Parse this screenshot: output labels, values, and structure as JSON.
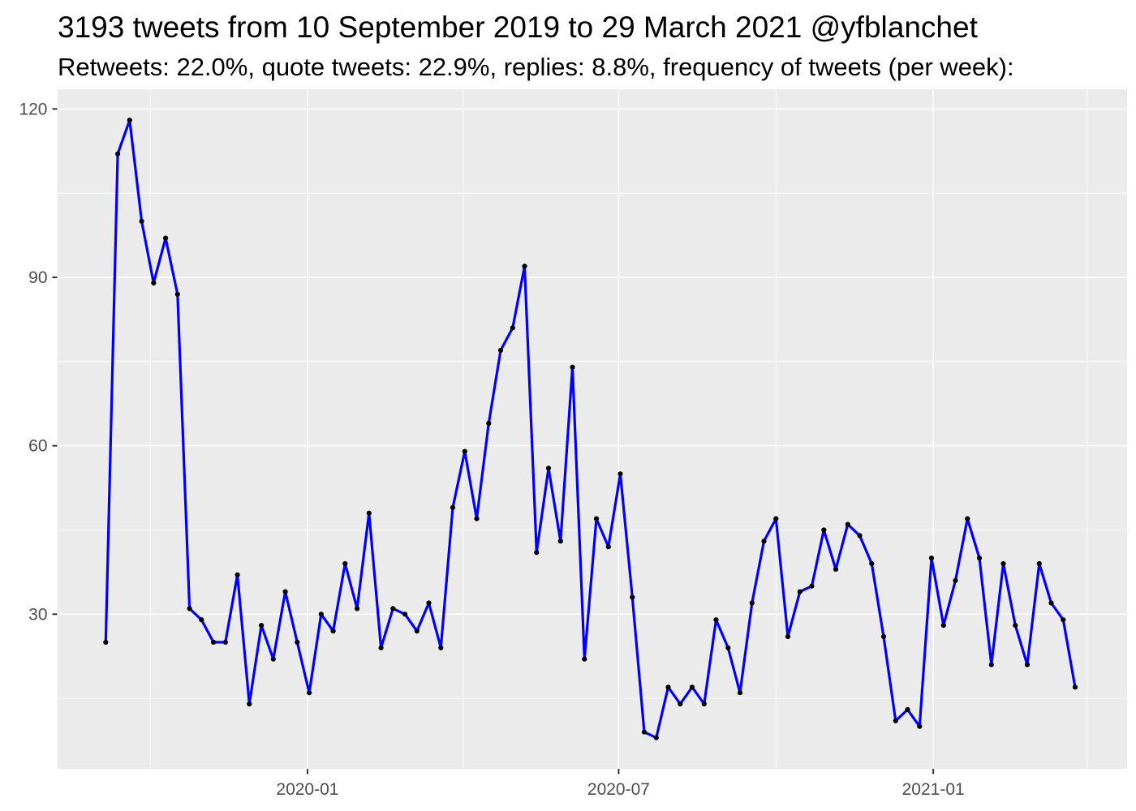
{
  "header": {
    "title": "3193 tweets from 10 September 2019 to 29 March 2021 @yfblanchet",
    "subtitle": "Retweets: 22.0%, quote tweets: 22.9%, replies: 8.8%, frequency of tweets (per week):"
  },
  "chart_data": {
    "type": "line",
    "title": "3193 tweets from 10 September 2019 to 29 March 2021 @yfblanchet",
    "subtitle": "Retweets: 22.0%, quote tweets: 22.9%, replies: 8.8%, frequency of tweets (per week):",
    "series_name": "tweets-per-week",
    "xlabel": "",
    "ylabel": "",
    "legend": "none",
    "grid": true,
    "x": [
      "2019-09-05",
      "2019-09-12",
      "2019-09-19",
      "2019-09-26",
      "2019-10-03",
      "2019-10-10",
      "2019-10-17",
      "2019-10-24",
      "2019-10-31",
      "2019-11-07",
      "2019-11-14",
      "2019-11-21",
      "2019-11-28",
      "2019-12-05",
      "2019-12-12",
      "2019-12-19",
      "2019-12-26",
      "2020-01-02",
      "2020-01-09",
      "2020-01-16",
      "2020-01-23",
      "2020-01-30",
      "2020-02-06",
      "2020-02-13",
      "2020-02-20",
      "2020-02-27",
      "2020-03-05",
      "2020-03-12",
      "2020-03-19",
      "2020-03-26",
      "2020-04-02",
      "2020-04-09",
      "2020-04-16",
      "2020-04-23",
      "2020-04-30",
      "2020-05-07",
      "2020-05-14",
      "2020-05-21",
      "2020-05-28",
      "2020-06-04",
      "2020-06-11",
      "2020-06-18",
      "2020-06-25",
      "2020-07-02",
      "2020-07-09",
      "2020-07-16",
      "2020-07-23",
      "2020-07-30",
      "2020-08-06",
      "2020-08-13",
      "2020-08-20",
      "2020-08-27",
      "2020-09-03",
      "2020-09-10",
      "2020-09-17",
      "2020-09-24",
      "2020-10-01",
      "2020-10-08",
      "2020-10-15",
      "2020-10-22",
      "2020-10-29",
      "2020-11-05",
      "2020-11-12",
      "2020-11-19",
      "2020-11-26",
      "2020-12-03",
      "2020-12-10",
      "2020-12-17",
      "2020-12-24",
      "2020-12-31",
      "2021-01-07",
      "2021-01-14",
      "2021-01-21",
      "2021-01-28",
      "2021-02-04",
      "2021-02-11",
      "2021-02-18",
      "2021-02-25",
      "2021-03-04",
      "2021-03-11",
      "2021-03-18",
      "2021-03-25"
    ],
    "values": [
      25,
      112,
      118,
      100,
      89,
      97,
      87,
      31,
      29,
      25,
      25,
      37,
      14,
      28,
      22,
      34,
      25,
      16,
      30,
      27,
      39,
      31,
      48,
      24,
      31,
      30,
      27,
      32,
      24,
      49,
      59,
      47,
      64,
      77,
      81,
      92,
      41,
      56,
      43,
      74,
      22,
      47,
      42,
      55,
      33,
      9,
      8,
      17,
      14,
      17,
      14,
      29,
      24,
      16,
      32,
      43,
      47,
      26,
      34,
      35,
      45,
      38,
      46,
      44,
      39,
      26,
      11,
      13,
      10,
      40,
      28,
      36,
      47,
      40,
      21,
      39,
      28,
      21,
      39,
      32,
      29,
      17
    ],
    "total_tweets_check": 3193,
    "ylim": [
      2.5,
      123.5
    ],
    "y_ticks": [
      30,
      60,
      90,
      120
    ],
    "y_minor": [
      15,
      45,
      75,
      105
    ],
    "x_ticks": [
      {
        "date": "2020-01-01",
        "label": "2020-01"
      },
      {
        "date": "2020-07-01",
        "label": "2020-07"
      },
      {
        "date": "2021-01-01",
        "label": "2021-01"
      }
    ],
    "x_minor": [
      "2019-10-01",
      "2020-04-01",
      "2020-10-01",
      "2021-04-01"
    ],
    "colors": {
      "line": "#0000FF",
      "point": "#000000",
      "panel_background": "#EBEBEB",
      "gridline": "#FFFFFF",
      "tick_mark": "#333333",
      "axis_text": "#4D4D4D",
      "title_text": "#000000"
    }
  }
}
